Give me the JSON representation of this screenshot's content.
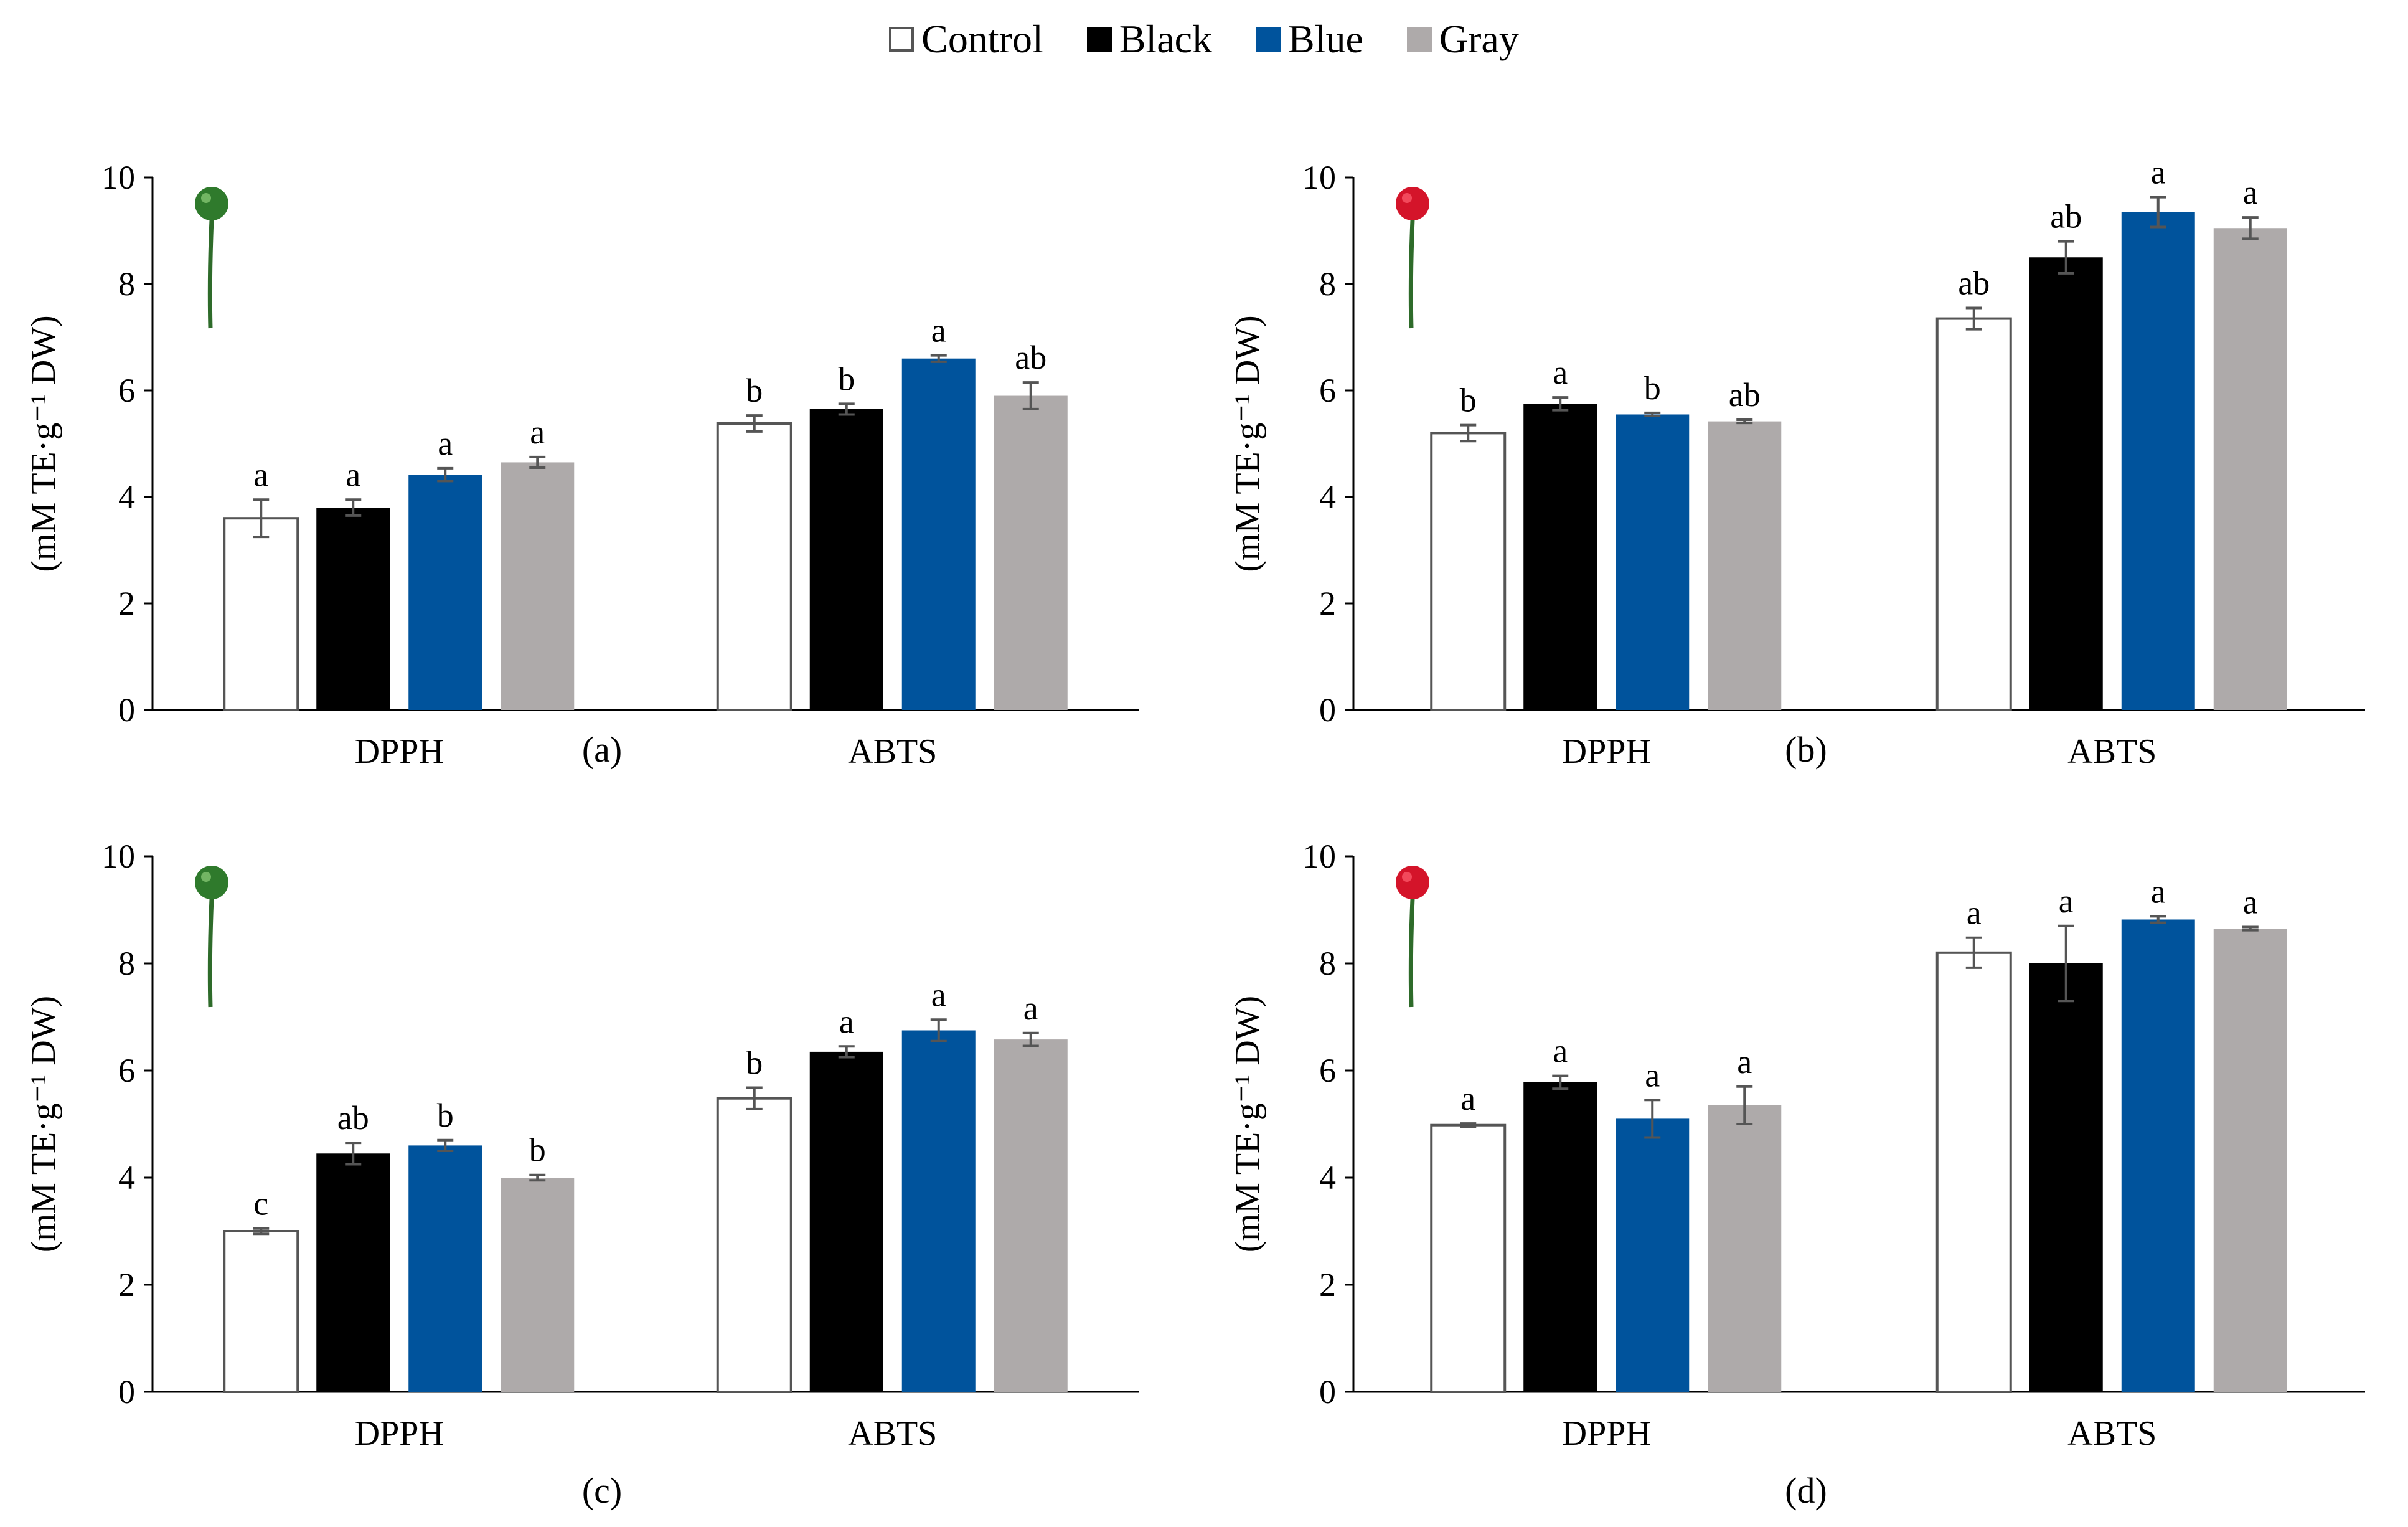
{
  "legend": {
    "items": [
      {
        "label": "Control",
        "color": "#ffffff",
        "border": "#555555"
      },
      {
        "label": "Black",
        "color": "#000000",
        "border": "#000000"
      },
      {
        "label": "Blue",
        "color": "#00539c",
        "border": "#00539c"
      },
      {
        "label": "Gray",
        "color": "#aeaaaa",
        "border": "#aeaaaa"
      }
    ]
  },
  "chart_data": [
    {
      "type": "bar",
      "panel_label": "(a)",
      "icon": "green-cherry-icon",
      "ylabel": "(mM TE·g⁻¹ DW)",
      "ylim": [
        0,
        10
      ],
      "yticks": [
        0,
        2,
        4,
        6,
        8,
        10
      ],
      "categories": [
        "DPPH",
        "ABTS"
      ],
      "series": [
        {
          "name": "Control",
          "values": [
            3.6,
            5.38
          ],
          "errors": [
            0.35,
            0.15
          ],
          "letters": [
            "a",
            "b"
          ]
        },
        {
          "name": "Black",
          "values": [
            3.8,
            5.65
          ],
          "errors": [
            0.15,
            0.1
          ],
          "letters": [
            "a",
            "b"
          ]
        },
        {
          "name": "Blue",
          "values": [
            4.42,
            6.6
          ],
          "errors": [
            0.12,
            0.06
          ],
          "letters": [
            "a",
            "a"
          ]
        },
        {
          "name": "Gray",
          "values": [
            4.65,
            5.9
          ],
          "errors": [
            0.1,
            0.25
          ],
          "letters": [
            "a",
            "ab"
          ]
        }
      ]
    },
    {
      "type": "bar",
      "panel_label": "(b)",
      "icon": "red-cherry-icon",
      "ylabel": "(mM TE·g⁻¹ DW)",
      "ylim": [
        0,
        10
      ],
      "yticks": [
        0,
        2,
        4,
        6,
        8,
        10
      ],
      "categories": [
        "DPPH",
        "ABTS"
      ],
      "series": [
        {
          "name": "Control",
          "values": [
            5.2,
            7.35
          ],
          "errors": [
            0.15,
            0.2
          ],
          "letters": [
            "b",
            "ab"
          ]
        },
        {
          "name": "Black",
          "values": [
            5.75,
            8.5
          ],
          "errors": [
            0.12,
            0.3
          ],
          "letters": [
            "a",
            "ab"
          ]
        },
        {
          "name": "Blue",
          "values": [
            5.55,
            9.35
          ],
          "errors": [
            0.03,
            0.28
          ],
          "letters": [
            "b",
            "a"
          ]
        },
        {
          "name": "Gray",
          "values": [
            5.42,
            9.05
          ],
          "errors": [
            0.03,
            0.2
          ],
          "letters": [
            "ab",
            "a"
          ]
        }
      ]
    },
    {
      "type": "bar",
      "panel_label": "(c)",
      "icon": "green-cherry-icon",
      "ylabel": "(mM TE·g⁻¹ DW)",
      "ylim": [
        0,
        10
      ],
      "yticks": [
        0,
        2,
        4,
        6,
        8,
        10
      ],
      "categories": [
        "DPPH",
        "ABTS"
      ],
      "series": [
        {
          "name": "Control",
          "values": [
            3.0,
            5.48
          ],
          "errors": [
            0.05,
            0.2
          ],
          "letters": [
            "c",
            "b"
          ]
        },
        {
          "name": "Black",
          "values": [
            4.45,
            6.35
          ],
          "errors": [
            0.2,
            0.1
          ],
          "letters": [
            "ab",
            "a"
          ]
        },
        {
          "name": "Blue",
          "values": [
            4.6,
            6.75
          ],
          "errors": [
            0.1,
            0.2
          ],
          "letters": [
            "b",
            "a"
          ]
        },
        {
          "name": "Gray",
          "values": [
            4.0,
            6.58
          ],
          "errors": [
            0.05,
            0.12
          ],
          "letters": [
            "b",
            "a"
          ]
        }
      ]
    },
    {
      "type": "bar",
      "panel_label": "(d)",
      "icon": "red-cherry-icon",
      "ylabel": "(mM TE·g⁻¹ DW)",
      "ylim": [
        0,
        10
      ],
      "yticks": [
        0,
        2,
        4,
        6,
        8,
        10
      ],
      "categories": [
        "DPPH",
        "ABTS"
      ],
      "series": [
        {
          "name": "Control",
          "values": [
            4.98,
            8.2
          ],
          "errors": [
            0.03,
            0.28
          ],
          "letters": [
            "a",
            "a"
          ]
        },
        {
          "name": "Black",
          "values": [
            5.78,
            8.0
          ],
          "errors": [
            0.12,
            0.7
          ],
          "letters": [
            "a",
            "a"
          ]
        },
        {
          "name": "Blue",
          "values": [
            5.1,
            8.82
          ],
          "errors": [
            0.35,
            0.06
          ],
          "letters": [
            "a",
            "a"
          ]
        },
        {
          "name": "Gray",
          "values": [
            5.35,
            8.65
          ],
          "errors": [
            0.35,
            0.03
          ],
          "letters": [
            "a",
            "a"
          ]
        }
      ]
    }
  ]
}
